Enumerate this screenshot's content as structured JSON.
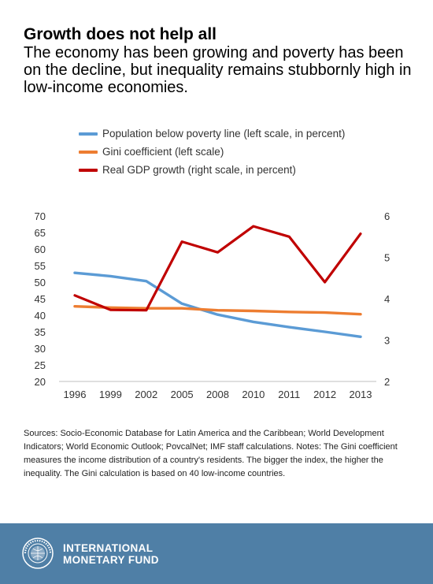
{
  "title": "Growth does not help all",
  "subtitle": "The economy has been growing and poverty has been on the decline, but inequality remains stubbornly high in low-income economies.",
  "chart_data": {
    "type": "line",
    "categories": [
      "1996",
      "1999",
      "2002",
      "2005",
      "2008",
      "2010",
      "2011",
      "2012",
      "2013"
    ],
    "series": [
      {
        "name": "Population below poverty line (left scale, in percent)",
        "axis": "left",
        "color": "#5b9bd5",
        "values": [
          52.8,
          51.8,
          50.3,
          43.5,
          40.2,
          38.0,
          36.4,
          35.0,
          33.5
        ]
      },
      {
        "name": "Gini coefficient (left scale)",
        "axis": "left",
        "color": "#ed7d31",
        "values": [
          42.7,
          42.3,
          42.1,
          42.1,
          41.5,
          41.3,
          41.0,
          40.8,
          40.3
        ]
      },
      {
        "name": "Real GDP growth (right scale, in percent)",
        "axis": "right",
        "color": "#c00000",
        "values": [
          4.08,
          3.73,
          3.72,
          5.38,
          5.12,
          5.75,
          5.5,
          4.4,
          5.57
        ]
      }
    ],
    "left_axis": {
      "ylim": [
        20,
        70
      ],
      "ticks": [
        "20",
        "25",
        "30",
        "35",
        "40",
        "45",
        "50",
        "55",
        "60",
        "65",
        "70"
      ]
    },
    "right_axis": {
      "ylim": [
        2,
        6
      ],
      "ticks": [
        "2",
        "3",
        "4",
        "5",
        "6"
      ]
    },
    "grid": false,
    "legend_position": "top-left"
  },
  "notes": "Sources: Socio-Economic Database for Latin America and the Caribbean; World Development Indicators; World Economic Outlook; PovcalNet; IMF staff calculations. Notes: The Gini coefficient measures the income distribution of a country's residents. The bigger the index, the higher the inequality. The Gini calculation is based on 40 low-income countries.",
  "footer": {
    "org_line1": "INTERNATIONAL",
    "org_line2": "MONETARY FUND",
    "seal_text": "INTERNATIONAL MONETARY FUND",
    "background_color": "#4f7fa6"
  }
}
